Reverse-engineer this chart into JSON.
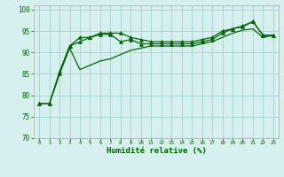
{
  "xlabel": "Humidité relative (%)",
  "background_color": "#d6f0f0",
  "grid_color": "#99cccc",
  "line_color": "#006600",
  "xlim": [
    -0.5,
    23.5
  ],
  "ylim": [
    70,
    101
  ],
  "yticks": [
    70,
    75,
    80,
    85,
    90,
    95,
    100
  ],
  "xticks": [
    0,
    1,
    2,
    3,
    4,
    5,
    6,
    7,
    8,
    9,
    10,
    11,
    12,
    13,
    14,
    15,
    16,
    17,
    18,
    19,
    20,
    21,
    22,
    23
  ],
  "s1": [
    78,
    78,
    85,
    91.5,
    92.5,
    93.5,
    94.2,
    94.2,
    92.5,
    93,
    92,
    92,
    92,
    92,
    92,
    92,
    92.5,
    93,
    94.5,
    95.5,
    96,
    97.2,
    94,
    94
  ],
  "s2": [
    78,
    78,
    85.5,
    91.5,
    93.5,
    93.5,
    94.5,
    94.5,
    94.5,
    93.5,
    93,
    92.5,
    92.5,
    92.5,
    92.5,
    92.5,
    93,
    93.5,
    95,
    95.5,
    96.2,
    97.2,
    94,
    94
  ],
  "s3": [
    78,
    78,
    85,
    91,
    86,
    87,
    88,
    88.5,
    89.5,
    90.5,
    91,
    91.5,
    91.5,
    91.5,
    91.5,
    91.5,
    92,
    92.5,
    93.5,
    94.5,
    95.2,
    95.5,
    93.5,
    94
  ]
}
